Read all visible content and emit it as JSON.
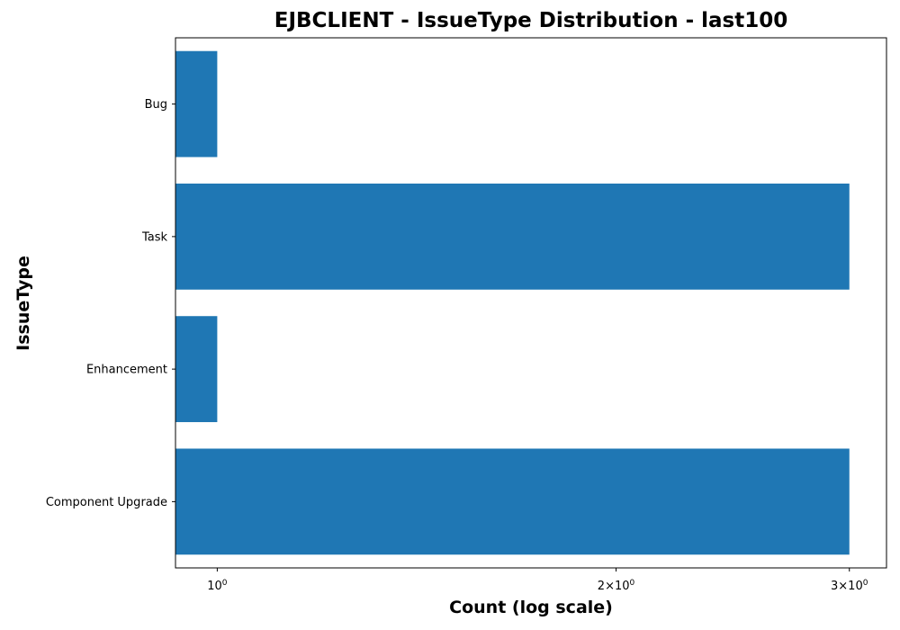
{
  "chart_data": {
    "type": "bar",
    "orientation": "horizontal",
    "title": "EJBCLIENT - IssueType Distribution - last100",
    "xlabel": "Count (log scale)",
    "ylabel": "IssueType",
    "x_scale": "log",
    "xlim": [
      0.93,
      3.2
    ],
    "x_ticks": [
      {
        "value": 1,
        "base": "10",
        "exp": "0"
      },
      {
        "value": 2,
        "prefix": "2×",
        "base": "10",
        "exp": "0"
      },
      {
        "value": 3,
        "prefix": "3×",
        "base": "10",
        "exp": "0"
      }
    ],
    "categories": [
      "Bug",
      "Task",
      "Enhancement",
      "Component Upgrade"
    ],
    "values": [
      1,
      3,
      1,
      3
    ],
    "bar_color": "#1f77b4",
    "grid": false,
    "legend": "none"
  }
}
